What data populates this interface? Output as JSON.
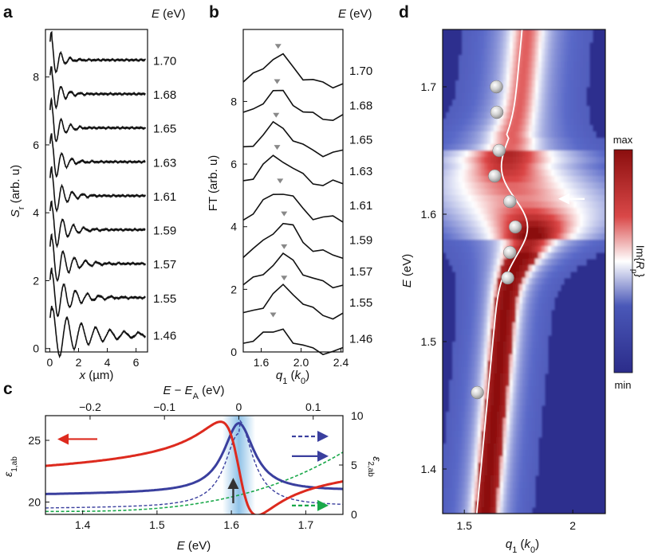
{
  "panel_labels": {
    "a": "a",
    "b": "b",
    "c": "c",
    "d": "d"
  },
  "chart_data": [
    {
      "id": "a",
      "type": "line",
      "ylabel": "S_r (arb. u)",
      "ylabel_main": "S",
      "ylabel_sub": "r",
      "ylabel_rest": " (arb. u)",
      "xlabel": "x (µm)",
      "xlabel_var": "x",
      "xlabel_unit": " (µm)",
      "right_title": "E (eV)",
      "right_title_var": "E",
      "right_title_unit": " (eV)",
      "xlim": [
        -0.3,
        6.8
      ],
      "ylim": [
        -0.1,
        9.4
      ],
      "xticks": [
        0,
        2,
        4,
        6
      ],
      "yticks": [
        0,
        2,
        4,
        6,
        8
      ],
      "energies": [
        "1.70",
        "1.68",
        "1.65",
        "1.63",
        "1.61",
        "1.59",
        "1.57",
        "1.55",
        "1.46"
      ],
      "offsets": [
        8.5,
        7.5,
        6.5,
        5.5,
        4.5,
        3.5,
        2.5,
        1.5,
        0.4
      ],
      "decay_um": [
        0.55,
        0.6,
        0.65,
        0.7,
        0.8,
        0.9,
        1.1,
        1.3,
        2.4
      ],
      "period_um": [
        0.65,
        0.66,
        0.67,
        0.7,
        0.72,
        0.75,
        0.78,
        0.82,
        1.0
      ]
    },
    {
      "id": "b",
      "type": "line",
      "ylabel": "FT (arb. u)",
      "xlabel": "q1 (k0)",
      "xlabel_var": "q",
      "xlabel_sub": "1",
      "xlabel_paren_open": " (",
      "xlabel_unit": "k",
      "xlabel_unit_sub": "0",
      "xlabel_paren_close": ")",
      "right_title": "E (eV)",
      "right_title_var": "E",
      "right_title_unit": " (eV)",
      "xlim": [
        1.42,
        2.42
      ],
      "ylim": [
        0,
        10.3
      ],
      "xticks": [
        "1.6",
        "2.0",
        "2.4"
      ],
      "xtick_values": [
        1.6,
        2.0,
        2.4
      ],
      "yticks": [
        0,
        2,
        4,
        6,
        8
      ],
      "energies": [
        "1.70",
        "1.68",
        "1.65",
        "1.63",
        "1.61",
        "1.59",
        "1.57",
        "1.55",
        "1.46"
      ],
      "offsets": [
        9.0,
        7.9,
        6.8,
        5.8,
        4.7,
        3.6,
        2.6,
        1.6,
        0.45
      ],
      "peak_q": [
        1.77,
        1.76,
        1.75,
        1.76,
        1.79,
        1.83,
        1.83,
        1.83,
        1.72
      ],
      "peak_height": [
        0.9,
        0.85,
        0.9,
        0.85,
        0.9,
        1.0,
        0.9,
        0.9,
        0.85
      ],
      "marker_color": "#888888"
    },
    {
      "id": "c",
      "type": "line",
      "xlabel": "E (eV)",
      "xlabel_var": "E",
      "xlabel_unit": " (eV)",
      "top_xlabel": "E − E_A (eV)",
      "top_xlabel_var": "E",
      "top_xlabel_minus": " − ",
      "top_xlabel_var2": "E",
      "top_xlabel_sub": "A",
      "top_xlabel_unit": " (eV)",
      "ylabel_left": "ε1,ab",
      "ylabel_left_main": "ε",
      "ylabel_left_sub": "1,ab",
      "ylabel_right": "ε2,ab",
      "ylabel_right_main": "ε",
      "ylabel_right_sub": "2,ab",
      "xlim": [
        1.35,
        1.75
      ],
      "ylim_left": [
        19,
        27
      ],
      "ylim_right": [
        0,
        10
      ],
      "xticks": [
        "1.4",
        "1.5",
        "1.6",
        "1.7"
      ],
      "xtick_values": [
        1.4,
        1.5,
        1.6,
        1.7
      ],
      "top_xticks": [
        "−0.2",
        "−0.1",
        "0",
        "0.1"
      ],
      "top_xtick_values": [
        -0.2,
        -0.1,
        0,
        0.1
      ],
      "yticks_left": [
        20,
        25
      ],
      "yticks_right": [
        0,
        5,
        10
      ],
      "resonance_E": 1.61,
      "colors": {
        "eps1": "#dd2a1e",
        "eps2": "#3a3f9e",
        "green": "#1aa84a",
        "shade": "#6aaee0",
        "arrow": "#333333"
      }
    },
    {
      "id": "d",
      "type": "heatmap",
      "xlabel": "q1 (k0)",
      "xlabel_var": "q",
      "xlabel_sub": "1",
      "xlabel_paren_open": " (",
      "xlabel_unit": "k",
      "xlabel_unit_sub": "0",
      "xlabel_paren_close": ")",
      "ylabel": "E (eV)",
      "ylabel_var": "E",
      "ylabel_unit": " (eV)",
      "xlim": [
        1.4,
        2.15
      ],
      "ylim": [
        1.365,
        1.745
      ],
      "xticks": [
        "1.5",
        "2"
      ],
      "xtick_values": [
        1.5,
        2.0
      ],
      "yticks": [
        "1.4",
        "1.5",
        "1.6",
        "1.7"
      ],
      "ytick_values": [
        1.4,
        1.5,
        1.6,
        1.7
      ],
      "colorbar_label": "Im{R_p}",
      "colorbar_label_main": "Im{",
      "colorbar_label_var": "R",
      "colorbar_label_sub": "p",
      "colorbar_label_close": "}",
      "colorbar_max": "max",
      "colorbar_min": "min",
      "colormap": [
        "#2b2c8a",
        "#ffffff",
        "#8b0e0e"
      ],
      "points": [
        {
          "q": 1.56,
          "E": 1.46
        },
        {
          "q": 1.7,
          "E": 1.55
        },
        {
          "q": 1.71,
          "E": 1.57
        },
        {
          "q": 1.735,
          "E": 1.59
        },
        {
          "q": 1.71,
          "E": 1.61
        },
        {
          "q": 1.64,
          "E": 1.63
        },
        {
          "q": 1.66,
          "E": 1.65
        },
        {
          "q": 1.65,
          "E": 1.68
        },
        {
          "q": 1.648,
          "E": 1.7
        }
      ],
      "arrow_E": 1.612
    }
  ]
}
